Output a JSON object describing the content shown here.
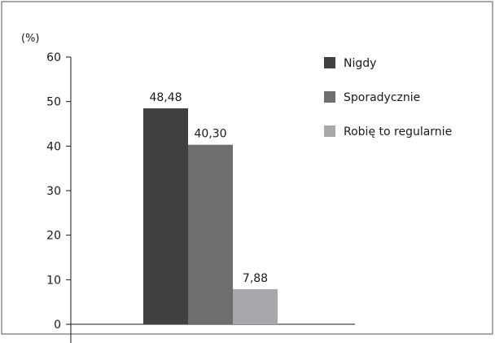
{
  "chart_data": {
    "type": "bar",
    "y_unit": "(%)",
    "ylim": [
      0,
      60
    ],
    "yticks": [
      0,
      10,
      20,
      30,
      40,
      50,
      60
    ],
    "grid": false,
    "legend_position": "right",
    "series": [
      {
        "name": "Nigdy",
        "value": 48.48,
        "label": "48,48",
        "color": "#404040"
      },
      {
        "name": "Sporadycznie",
        "value": 40.3,
        "label": "40,30",
        "color": "#6d6e70"
      },
      {
        "name": "Robię to regularnie",
        "value": 7.88,
        "label": "7,88",
        "color": "#a6a8ab"
      }
    ]
  }
}
